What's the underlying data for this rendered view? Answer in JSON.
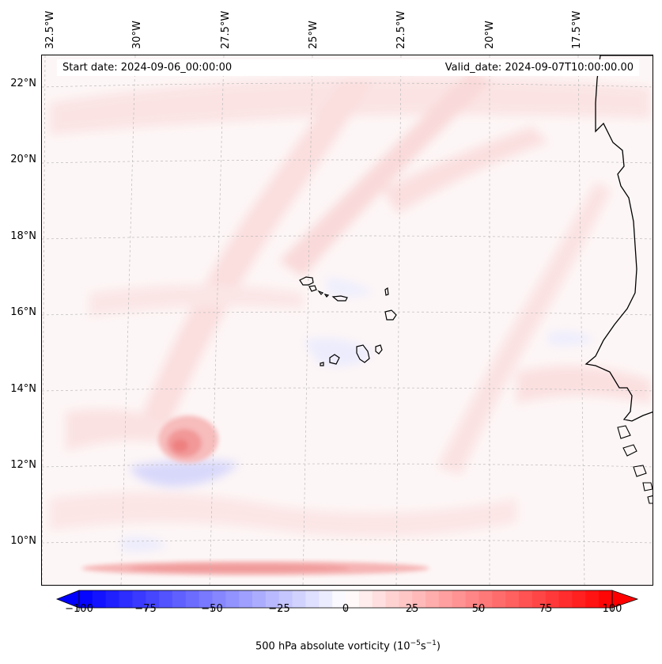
{
  "header": {
    "start_date": "Start date: 2024-09-06_00:00:00",
    "valid_date": "Valid_date: 2024-09-07T10:00:00.00"
  },
  "map": {
    "variable": "500 hPa absolute vorticity",
    "longitude_labels": [
      "32.5°W",
      "30°W",
      "27.5°W",
      "25°W",
      "22.5°W",
      "20°W",
      "17.5°W"
    ],
    "latitude_labels": [
      "22°N",
      "20°N",
      "18°N",
      "16°N",
      "14°N",
      "12°N",
      "10°N"
    ],
    "features": [
      "Cape Verde islands",
      "West African coastline"
    ]
  },
  "colorbar": {
    "ticks": [
      "−100",
      "−75",
      "−50",
      "−25",
      "0",
      "25",
      "50",
      "75",
      "100"
    ],
    "min": -100,
    "max": 100,
    "colormap": "bwr",
    "extend": "both",
    "label_main": "500 hPa absolute vorticity (10",
    "label_exp1": "−5",
    "label_mid": "s",
    "label_exp2": "−1",
    "label_end": ")"
  },
  "colors": {
    "negative": "#0000ff",
    "neutral": "#ffffff",
    "positive": "#ff0000"
  }
}
